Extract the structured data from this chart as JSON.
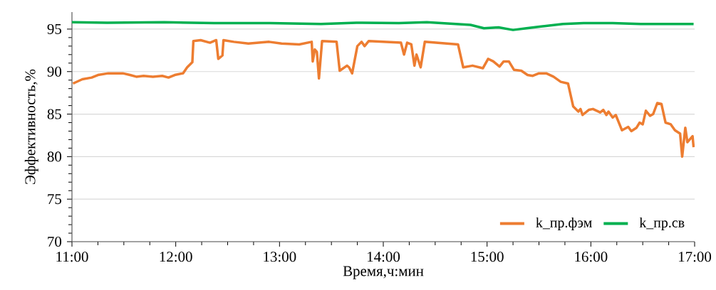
{
  "chart_data": {
    "type": "line",
    "xlabel": "Время,ч:мин",
    "ylabel": "Эффективность,%",
    "xlim": [
      11,
      17
    ],
    "ylim": [
      70,
      97
    ],
    "xticks": [
      {
        "value": 11,
        "label": "11:00"
      },
      {
        "value": 12,
        "label": "12:00"
      },
      {
        "value": 13,
        "label": "13:00"
      },
      {
        "value": 14,
        "label": "14:00"
      },
      {
        "value": 15,
        "label": "15:00"
      },
      {
        "value": 16,
        "label": "16:00"
      },
      {
        "value": 17,
        "label": "17:00"
      }
    ],
    "yticks": [
      70,
      75,
      80,
      85,
      90,
      95
    ],
    "grid": "y",
    "legend": "bottom right",
    "series": [
      {
        "name": "k_пр.фэм",
        "color": "#ed7d31",
        "x": [
          11.01,
          11.1,
          11.19,
          11.25,
          11.35,
          11.49,
          11.56,
          11.62,
          11.69,
          11.78,
          11.87,
          11.93,
          11.99,
          12.07,
          12.11,
          12.16,
          12.17,
          12.24,
          12.33,
          12.39,
          12.41,
          12.45,
          12.46,
          12.56,
          12.7,
          12.9,
          13.02,
          13.19,
          13.31,
          13.32,
          13.34,
          13.36,
          13.38,
          13.41,
          13.55,
          13.58,
          13.65,
          13.67,
          13.7,
          13.75,
          13.79,
          13.82,
          13.86,
          14.17,
          14.2,
          14.23,
          14.27,
          14.3,
          14.32,
          14.36,
          14.4,
          14.72,
          14.77,
          14.86,
          14.96,
          15.01,
          15.06,
          15.12,
          15.16,
          15.21,
          15.26,
          15.33,
          15.39,
          15.44,
          15.5,
          15.57,
          15.64,
          15.71,
          15.78,
          15.83,
          15.88,
          15.9,
          15.92,
          15.98,
          16.02,
          16.09,
          16.12,
          16.15,
          16.17,
          16.21,
          16.24,
          16.3,
          16.36,
          16.39,
          16.44,
          16.47,
          16.5,
          16.53,
          16.57,
          16.6,
          16.64,
          16.68,
          16.72,
          16.77,
          16.81,
          16.86,
          16.88,
          16.91,
          16.93,
          16.98,
          16.99
        ],
        "values": [
          88.6,
          89.1,
          89.3,
          89.6,
          89.8,
          89.8,
          89.6,
          89.4,
          89.5,
          89.4,
          89.5,
          89.3,
          89.6,
          89.8,
          90.5,
          91.1,
          93.6,
          93.7,
          93.4,
          93.7,
          91.5,
          91.9,
          93.7,
          93.5,
          93.3,
          93.5,
          93.3,
          93.2,
          93.5,
          91.2,
          92.6,
          92.3,
          89.2,
          93.6,
          93.5,
          90.1,
          90.7,
          90.5,
          89.8,
          93.0,
          93.5,
          93.0,
          93.6,
          93.4,
          92.0,
          93.4,
          93.2,
          90.7,
          92.0,
          90.5,
          93.5,
          93.2,
          90.5,
          90.7,
          90.4,
          91.5,
          91.2,
          90.6,
          91.2,
          91.2,
          90.2,
          90.1,
          89.6,
          89.5,
          89.8,
          89.8,
          89.4,
          88.8,
          88.6,
          85.9,
          85.3,
          85.6,
          84.9,
          85.5,
          85.6,
          85.2,
          85.5,
          84.9,
          85.3,
          84.6,
          84.9,
          83.1,
          83.5,
          83.0,
          83.4,
          84.0,
          83.8,
          85.4,
          84.8,
          85.0,
          86.3,
          86.2,
          84.0,
          83.8,
          83.1,
          82.7,
          80.0,
          83.4,
          81.7,
          82.4,
          81.1
        ]
      },
      {
        "name": "k_пр.св",
        "color": "#00b050",
        "x": [
          11.0,
          11.34,
          11.89,
          12.37,
          12.91,
          13.4,
          13.74,
          14.15,
          14.42,
          14.7,
          14.84,
          14.97,
          15.11,
          15.25,
          15.38,
          15.52,
          15.73,
          15.93,
          16.21,
          16.48,
          16.76,
          16.99
        ],
        "values": [
          95.8,
          95.75,
          95.8,
          95.7,
          95.7,
          95.6,
          95.75,
          95.7,
          95.8,
          95.6,
          95.5,
          95.1,
          95.2,
          94.9,
          95.1,
          95.3,
          95.6,
          95.7,
          95.7,
          95.6,
          95.6,
          95.6
        ]
      }
    ]
  }
}
